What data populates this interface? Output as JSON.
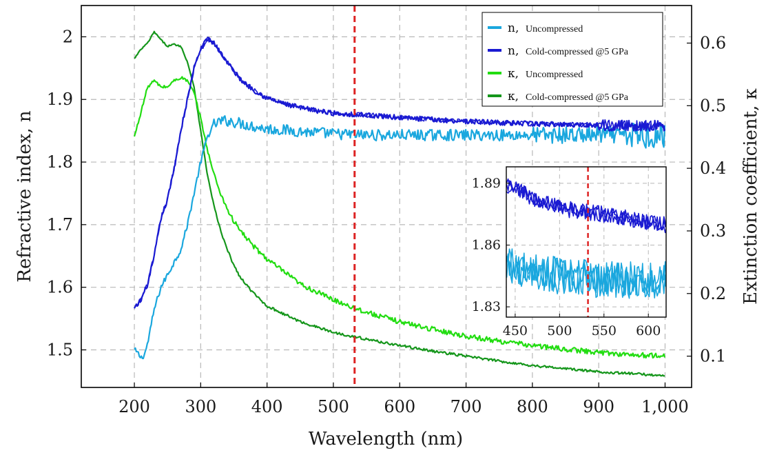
{
  "chart_data": {
    "type": "line",
    "xlabel": "Wavelength (nm)",
    "ylabel_left": "Refractive index, n",
    "ylabel_right": "Extinction coefficient, κ",
    "xlim": [
      120,
      1040
    ],
    "ylim_left": [
      1.44,
      2.05
    ],
    "ylim_right": [
      0.05,
      0.66
    ],
    "x_ticks": [
      200,
      300,
      400,
      500,
      600,
      700,
      800,
      900,
      1000
    ],
    "x_tick_labels": [
      "200",
      "300",
      "400",
      "500",
      "600",
      "700",
      "800",
      "900",
      "1,000"
    ],
    "y_left_ticks": [
      1.5,
      1.6,
      1.7,
      1.8,
      1.9,
      2.0
    ],
    "y_left_tick_labels": [
      "1.5",
      "1.6",
      "1.7",
      "1.8",
      "1.9",
      "2"
    ],
    "y_right_ticks": [
      0.1,
      0.2,
      0.3,
      0.4,
      0.5,
      0.6
    ],
    "y_right_tick_labels": [
      "0.1",
      "0.2",
      "0.3",
      "0.4",
      "0.5",
      "0.6"
    ],
    "grid": true,
    "legend_position": "top-right",
    "reference_line": {
      "x": 532,
      "style": "dashed",
      "color": "#dd2222"
    },
    "series": [
      {
        "symbol": "n,",
        "name": "Uncompressed",
        "axis": "left",
        "color": "#1aa7de",
        "noise": 0.009,
        "x": [
          200,
          205,
          210,
          215,
          220,
          230,
          240,
          250,
          260,
          270,
          280,
          290,
          300,
          310,
          320,
          330,
          340,
          350,
          360,
          380,
          400,
          450,
          500,
          550,
          600,
          650,
          700,
          750,
          800,
          850,
          900,
          950,
          1000
        ],
        "y": [
          1.5,
          1.495,
          1.487,
          1.492,
          1.51,
          1.565,
          1.6,
          1.62,
          1.64,
          1.66,
          1.7,
          1.75,
          1.8,
          1.84,
          1.86,
          1.865,
          1.866,
          1.864,
          1.862,
          1.857,
          1.853,
          1.849,
          1.845,
          1.843,
          1.843,
          1.843,
          1.843,
          1.843,
          1.843,
          1.843,
          1.843,
          1.843,
          1.843
        ]
      },
      {
        "symbol": "n,",
        "name": "Cold-compressed @5 GPa",
        "axis": "left",
        "color": "#1a1ad2",
        "noise": 0.004,
        "x": [
          200,
          210,
          220,
          230,
          240,
          250,
          260,
          270,
          280,
          290,
          300,
          310,
          320,
          330,
          340,
          350,
          360,
          380,
          400,
          425,
          450,
          475,
          500,
          532,
          550,
          600,
          650,
          700,
          750,
          800,
          850,
          900,
          950,
          1000
        ],
        "y": [
          1.565,
          1.58,
          1.605,
          1.65,
          1.71,
          1.74,
          1.79,
          1.85,
          1.9,
          1.95,
          1.98,
          1.997,
          1.99,
          1.975,
          1.96,
          1.945,
          1.932,
          1.915,
          1.902,
          1.893,
          1.887,
          1.882,
          1.878,
          1.876,
          1.875,
          1.871,
          1.868,
          1.865,
          1.863,
          1.861,
          1.86,
          1.859,
          1.858,
          1.858
        ]
      },
      {
        "symbol": "κ,",
        "name": "Uncompressed",
        "axis": "right",
        "color": "#22dd11",
        "noise": 0.004,
        "x": [
          200,
          210,
          220,
          230,
          240,
          250,
          260,
          270,
          280,
          290,
          300,
          310,
          320,
          330,
          340,
          350,
          360,
          380,
          400,
          450,
          500,
          550,
          600,
          650,
          700,
          750,
          800,
          850,
          900,
          950,
          1000
        ],
        "y": [
          0.45,
          0.49,
          0.53,
          0.54,
          0.53,
          0.53,
          0.54,
          0.545,
          0.54,
          0.52,
          0.48,
          0.43,
          0.39,
          0.36,
          0.335,
          0.315,
          0.3,
          0.275,
          0.255,
          0.215,
          0.19,
          0.17,
          0.155,
          0.143,
          0.132,
          0.124,
          0.117,
          0.111,
          0.106,
          0.102,
          0.1
        ]
      },
      {
        "symbol": "κ,",
        "name": "Cold-compressed @5 GPa",
        "axis": "right",
        "color": "#15961b",
        "noise": 0.002,
        "x": [
          200,
          210,
          220,
          230,
          240,
          250,
          260,
          270,
          280,
          290,
          300,
          310,
          320,
          330,
          340,
          350,
          360,
          380,
          400,
          450,
          500,
          550,
          600,
          650,
          700,
          750,
          800,
          850,
          900,
          950,
          1000
        ],
        "y": [
          0.575,
          0.59,
          0.6,
          0.618,
          0.605,
          0.595,
          0.598,
          0.595,
          0.57,
          0.53,
          0.46,
          0.39,
          0.34,
          0.3,
          0.27,
          0.245,
          0.225,
          0.2,
          0.18,
          0.155,
          0.138,
          0.127,
          0.117,
          0.108,
          0.1,
          0.092,
          0.085,
          0.08,
          0.075,
          0.072,
          0.069
        ]
      }
    ],
    "inset": {
      "xlim": [
        440,
        620
      ],
      "ylim": [
        1.825,
        1.898
      ],
      "x_ticks": [
        450,
        500,
        550,
        600
      ],
      "x_tick_labels": [
        "450",
        "500",
        "550",
        "600"
      ],
      "y_ticks": [
        1.83,
        1.86,
        1.89
      ],
      "y_tick_labels": [
        "1.83",
        "1.86",
        "1.89"
      ]
    }
  },
  "colors": {
    "n_uncompressed": "#1aa7de",
    "n_compressed": "#1a1ad2",
    "k_uncompressed": "#22dd11",
    "k_compressed": "#15961b",
    "reference_line": "#dd2222",
    "grid": "#b8b8b8"
  }
}
